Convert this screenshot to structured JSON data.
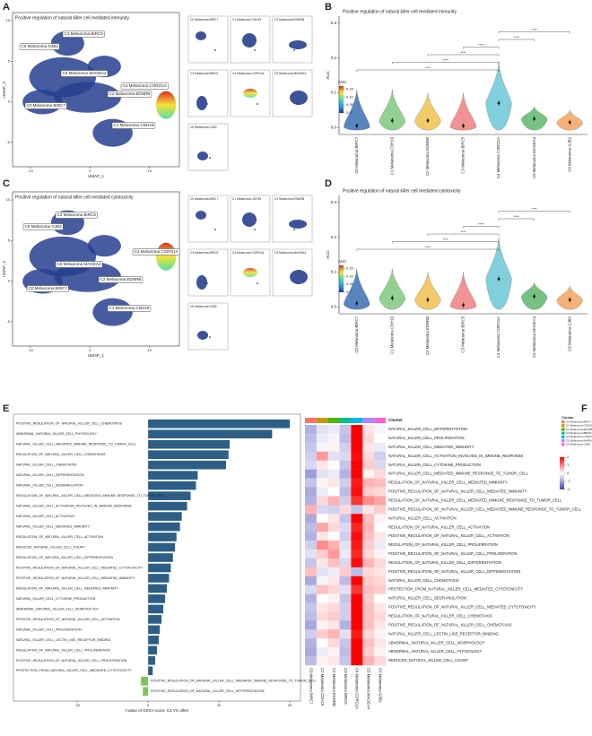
{
  "chart_data": [
    {
      "type": "umap",
      "panel": "A",
      "title": "Positive regulation of natural killer cell mediated immunity",
      "xlabel": "UMAP_1",
      "ylabel": "UMAP_2",
      "xlim": [
        -13,
        15
      ],
      "ylim": [
        -8,
        11
      ],
      "xticks": [
        -10,
        0,
        10
      ],
      "yticks": [
        -5,
        0,
        5,
        10
      ],
      "clusters": [
        "C0 Melanoma BIRC7",
        "C1 Melanoma CDH19",
        "C2 Melanoma EDNRB",
        "C3 Melanoma BIRC5",
        "C4 Melanoma CORO1A",
        "C5 Melanoma MAGEA4",
        "C6 Melanoma GJB2"
      ],
      "colorbar": {
        "title": "AUC",
        "lim": [
          0,
          0.17
        ],
        "ticks": [
          {
            "value": 0,
            "label": "0.00"
          },
          {
            "value": 0.05,
            "label": "0.05"
          },
          {
            "value": 0.1,
            "label": "0.10"
          },
          {
            "value": 0.15,
            "label": "0.15"
          }
        ],
        "colors": [
          "#24368c",
          "#2a9df4",
          "#4fe3a0",
          "#f5e23a",
          "#d7301f"
        ]
      }
    },
    {
      "type": "violin",
      "panel": "B",
      "title": "Positive regulation of natural killer cell mediated immunity",
      "ylabel": "AUC",
      "ylim": [
        -0.02,
        0.32
      ],
      "yticks": [
        {
          "value": 0,
          "label": "0.0"
        },
        {
          "value": 0.1,
          "label": "0.1"
        },
        {
          "value": 0.2,
          "label": "0.2"
        },
        {
          "value": 0.3,
          "label": "0.3"
        }
      ],
      "categories": [
        "C0 Melanoma BIRC7",
        "C1 Melanoma CDH19",
        "C2 Melanoma EDNRB",
        "C3 Melanoma BIRC5",
        "C4 Melanoma CORO1A",
        "C5 Melanoma MAGEA4",
        "C6 Melanoma GJB2"
      ],
      "values": [
        0.005,
        0.02,
        0.02,
        0.005,
        0.07,
        0.025,
        0.015
      ],
      "max_values": [
        0.11,
        0.11,
        0.1,
        0.1,
        0.19,
        0.06,
        0.05
      ],
      "colors": [
        "#3b6fb6",
        "#7fc97f",
        "#f2c14e",
        "#f08080",
        "#6cc8d8",
        "#5fb86f",
        "#f4a460"
      ],
      "comparisons": [
        {
          "groups": [
            "C0 Melanoma BIRC7",
            "C4 Melanoma CORO1A"
          ],
          "label": "****"
        },
        {
          "groups": [
            "C1 Melanoma CDH19",
            "C4 Melanoma CORO1A"
          ],
          "label": "****"
        },
        {
          "groups": [
            "C2 Melanoma EDNRB",
            "C4 Melanoma CORO1A"
          ],
          "label": "****"
        },
        {
          "groups": [
            "C3 Melanoma BIRC5",
            "C4 Melanoma CORO1A"
          ],
          "label": "****"
        },
        {
          "groups": [
            "C4 Melanoma CORO1A",
            "C5 Melanoma MAGEA4"
          ],
          "label": "****"
        },
        {
          "groups": [
            "C4 Melanoma CORO1A",
            "C6 Melanoma GJB2"
          ],
          "label": "****"
        }
      ]
    },
    {
      "type": "umap",
      "panel": "C",
      "title": "Positive regulation of natural killer cell mediated cytotoxicity",
      "xlabel": "UMAP_1",
      "ylabel": "UMAP_2",
      "xlim": [
        -13,
        15
      ],
      "ylim": [
        -8,
        11
      ],
      "xticks": [
        -10,
        0,
        10
      ],
      "yticks": [
        -5,
        0,
        5,
        10
      ],
      "clusters": [
        "C0 Melanoma BIRC7",
        "C1 Melanoma CDH19",
        "C2 Melanoma EDNRB",
        "C3 Melanoma BIRC5",
        "C4 Melanoma CORO1A",
        "C5 Melanoma MAGEA4",
        "C6 Melanoma GJB2"
      ],
      "colorbar": {
        "title": "AUC",
        "lim": [
          0,
          0.17
        ],
        "ticks": [
          {
            "value": 0,
            "label": "0.00"
          },
          {
            "value": 0.05,
            "label": "0.05"
          },
          {
            "value": 0.1,
            "label": "0.10"
          },
          {
            "value": 0.15,
            "label": "0.15"
          }
        ],
        "colors": [
          "#24368c",
          "#2a9df4",
          "#4fe3a0",
          "#f5e23a",
          "#d7301f"
        ]
      }
    },
    {
      "type": "violin",
      "panel": "D",
      "title": "Positive regulation of natural killer cell mediated cytotoxicity",
      "ylabel": "AUC",
      "ylim": [
        -0.02,
        0.32
      ],
      "yticks": [
        {
          "value": 0,
          "label": "0.0"
        },
        {
          "value": 0.1,
          "label": "0.1"
        },
        {
          "value": 0.2,
          "label": "0.2"
        },
        {
          "value": 0.3,
          "label": "0.3"
        }
      ],
      "categories": [
        "C0 Melanoma BIRC7",
        "C1 Melanoma CDH19",
        "C2 Melanoma EDNRB",
        "C3 Melanoma BIRC5",
        "C4 Melanoma CORO1A",
        "C5 Melanoma MAGEA4",
        "C6 Melanoma GJB2"
      ],
      "values": [
        0.01,
        0.025,
        0.02,
        0.005,
        0.08,
        0.03,
        0.02
      ],
      "max_values": [
        0.11,
        0.11,
        0.1,
        0.1,
        0.2,
        0.07,
        0.06
      ],
      "colors": [
        "#3b6fb6",
        "#7fc97f",
        "#f2c14e",
        "#f08080",
        "#6cc8d8",
        "#5fb86f",
        "#f4a460"
      ],
      "comparisons": [
        {
          "groups": [
            "C0 Melanoma BIRC7",
            "C4 Melanoma CORO1A"
          ],
          "label": "****"
        },
        {
          "groups": [
            "C1 Melanoma CDH19",
            "C4 Melanoma CORO1A"
          ],
          "label": "****"
        },
        {
          "groups": [
            "C2 Melanoma EDNRB",
            "C4 Melanoma CORO1A"
          ],
          "label": "****"
        },
        {
          "groups": [
            "C3 Melanoma BIRC5",
            "C4 Melanoma CORO1A"
          ],
          "label": "****"
        },
        {
          "groups": [
            "C4 Melanoma CORO1A",
            "C5 Melanoma MAGEA4"
          ],
          "label": "****"
        },
        {
          "groups": [
            "C4 Melanoma CORO1A",
            "C6 Melanoma GJB2"
          ],
          "label": "****"
        }
      ]
    },
    {
      "type": "hbar",
      "panel": "E",
      "xlabel": "t value of GSVA score, C4 VS other",
      "xlim": [
        -38,
        43
      ],
      "xticks": [
        -20,
        0,
        20,
        40
      ],
      "positive_color": "#2d5f86",
      "negative_color": "#7cc461",
      "categories": [
        "POSITIVE_REGULATION_OF_NATURAL_KILLER_CELL_CHEMOTAXIS",
        "ABNORMAL_NATURAL_KILLER_CELL_PHYSIOLOGY",
        "NATURAL_KILLER_CELL_MEDIATED_IMMUNE_RESPONSE_TO_TUMOR_CELL",
        "REGULATION_OF_NATURAL_KILLER_CELL_CHEMOTAXIS",
        "NATURAL_KILLER_CELL_CHEMOTAXIS",
        "NATURAL_KILLER_CELL_DIFFERENTIATION",
        "NATURAL_KILLER_CELL_DEGRANULATION",
        "REGULATION_OF_NATURAL_KILLER_CELL_MEDIATED_IMMUNE_RESPONSE_TO_TUMOR_CELL",
        "NATURAL_KILLER_CELL_ACTIVATION_INVOLVED_IN_IMMUNE_RESPONSE",
        "NATURAL_KILLER_CELL_ACTIVATION",
        "NATURAL_KILLER_CELL_MEDIATED_IMMUNITY",
        "REGULATION_OF_NATURAL_KILLER_CELL_ACTIVATION",
        "REDUCED_NATURAL_KILLER_CELL_COUNT",
        "REGULATION_OF_NATURAL_KILLER_CELL_DIFFERENTIATION",
        "POSITIVE_REGULATION_OF_NATURAL_KILLER_CELL_MEDIATED_CYTOTOXICITY",
        "POSITIVE_REGULATION_OF_NATURAL_KILLER_CELL_MEDIATED_IMMUNITY",
        "REGULATION_OF_NATURAL_KILLER_CELL_MEDIATED_IMMUNITY",
        "NATURAL_KILLER_CELL_CYTOKINE_PRODUCTION",
        "ABNORMAL_NATURAL_KILLER_CELL_MORPHOLOGY",
        "POSITIVE_REGULATION_OF_NATURAL_KILLER_CELL_ACTIVATION",
        "NATURAL_KILLER_CELL_PROLIFERATION",
        "NATURAL_KILLER_CELL_LECTIN_LIKE_RECEPTOR_BINDING",
        "REGULATION_OF_NATURAL_KILLER_CELL_PROLIFERATION",
        "POSITIVE_REGULATION_OF_NATURAL_KILLER_CELL_PROLIFERATION",
        "PROTECTION_FROM_NATURAL_KILLER_CELL_MEDIATED_CYTOTOXICITY",
        "POSITIVE_REGULATION_OF_NATURAL_KILLER_CELL_MEDIATED_IMMUNE_RESPONSE_TO_TUMOR_CELL",
        "POSITIVE_REGULATION_OF_NATURAL_KILLER_CELL_DIFFERENTIATION"
      ],
      "values": [
        40,
        35,
        23,
        22.7,
        22,
        14,
        13.5,
        12,
        11,
        9.5,
        9,
        8,
        7.6,
        7,
        6.4,
        5.9,
        5.3,
        4.8,
        4.3,
        3.8,
        3.3,
        3,
        2.5,
        2,
        1.3,
        -2,
        -1.5
      ]
    },
    {
      "type": "heatmap",
      "panel": "F",
      "annotation_title": "Cluster",
      "legend_title": "Cluster",
      "zlim": [
        -2,
        2
      ],
      "zticks": [
        -2,
        -1,
        0,
        1,
        2
      ],
      "scale_colors": [
        "#3f3fb6",
        "#ffffff",
        "#ff0000"
      ],
      "columns": [
        "C0 Melanoma BIRC7",
        "C1 Melanoma CDH19",
        "C2 Melanoma EDNRB",
        "C3 Melanoma BIRC5",
        "C4 Melanoma CORO1A",
        "C5 Melanoma MAGEA4",
        "C6 Melanoma GJB2"
      ],
      "cluster_colors": [
        "#F8766D",
        "#C49A00",
        "#53B400",
        "#00C094",
        "#00B6EB",
        "#A58AFF",
        "#FB61D7"
      ],
      "rows": [
        "NATURAL_KILLER_CELL_DIFFERENTIATION",
        "NATURAL_KILLER_CELL_PROLIFERATION",
        "NATURAL_KILLER_CELL_MEDIATED_IMMUNITY",
        "NATURAL_KILLER_CELL_ACTIVATION_INVOLVED_IN_IMMUNE_RESPONSE",
        "NATURAL_KILLER_CELL_CYTOKINE_PRODUCTION",
        "NATURAL_KILLER_CELL_MEDIATED_IMMUNE_RESPONSE_TO_TUMOR_CELL",
        "REGULATION_OF_NATURAL_KILLER_CELL_MEDIATED_IMMUNITY",
        "POSITIVE_REGULATION_OF_NATURAL_KILLER_CELL_MEDIATED_IMMUNITY",
        "REGULATION_OF_NATURAL_KILLER_CELL_MEDIATED_IMMUNE_RESPONSE_TO_TUMOR_CELL",
        "POSITIVE_REGULATION_OF_NATURAL_KILLER_CELL_MEDIATED_IMMUNE_RESPONSE_TO_TUMOR_CELL",
        "NATURAL_KILLER_CELL_ACTIVATION",
        "REGULATION_OF_NATURAL_KILLER_CELL_ACTIVATION",
        "POSITIVE_REGULATION_OF_NATURAL_KILLER_CELL_ACTIVATION",
        "REGULATION_OF_NATURAL_KILLER_CELL_PROLIFERATION",
        "POSITIVE_REGULATION_OF_NATURAL_KILLER_CELL_PROLIFERATION",
        "REGULATION_OF_NATURAL_KILLER_CELL_DIFFERENTIATION",
        "POSITIVE_REGULATION_OF_NATURAL_KILLER_CELL_DIFFERENTIATION",
        "NATURAL_KILLER_CELL_CHEMOTAXIS",
        "PROTECTION_FROM_NATURAL_KILLER_CELL_MEDIATED_CYTOTOXICITY",
        "NATURAL_KILLER_CELL_DEGRANULATION",
        "POSITIVE_REGULATION_OF_NATURAL_KILLER_CELL_MEDIATED_CYTOTOXICITY",
        "REGULATION_OF_NATURAL_KILLER_CELL_CHEMOTAXIS",
        "POSITIVE_REGULATION_OF_NATURAL_KILLER_CELL_CHEMOTAXIS",
        "NATURAL_KILLER_CELL_LECTIN_LIKE_RECEPTOR_BINDING",
        "ABNORMAL_NATURAL_KILLER_CELL_MORPHOLOGY",
        "ABNORMAL_NATURAL_KILLER_CELL_PHYSIOLOGY",
        "REDUCED_NATURAL_KILLER_CELL_COUNT"
      ],
      "values": [
        [
          -0.8,
          -0.3,
          -0.2,
          -0.6,
          2.3,
          0.2,
          -0.1
        ],
        [
          -0.7,
          -0.2,
          -0.1,
          -0.7,
          2.3,
          0.3,
          0
        ],
        [
          -0.6,
          -0.1,
          0.1,
          -0.5,
          2.2,
          0.2,
          -0.2
        ],
        [
          -0.5,
          0.8,
          -0.3,
          -0.4,
          1.9,
          0.3,
          -0.5
        ],
        [
          -0.4,
          0.2,
          0,
          -0.6,
          2.1,
          0.4,
          -0.4
        ],
        [
          -1,
          -0.3,
          -0.2,
          -0.8,
          2,
          0.1,
          0.3
        ],
        [
          -0.6,
          0.1,
          0.2,
          -0.5,
          1.8,
          0.6,
          0.5
        ],
        [
          -0.9,
          -0.2,
          0,
          -0.7,
          1.9,
          0.4,
          0.3
        ],
        [
          -0.8,
          0.3,
          0.6,
          -0.5,
          1.6,
          0.9,
          0.7
        ],
        [
          0.6,
          -0.4,
          -0.5,
          0.3,
          -0.6,
          0.2,
          0.4
        ],
        [
          -0.9,
          0,
          0.2,
          -0.6,
          2.2,
          0.5,
          0.1
        ],
        [
          -0.7,
          0.7,
          0.3,
          -0.4,
          1.7,
          0.6,
          0
        ],
        [
          -0.8,
          0.2,
          0,
          -0.5,
          1.9,
          0.5,
          0.2
        ],
        [
          -0.5,
          0.9,
          0.6,
          -0.3,
          1.8,
          0.4,
          -0.2
        ],
        [
          -0.3,
          0.4,
          0.8,
          -0.2,
          1.7,
          0.3,
          0.1
        ],
        [
          -0.6,
          0.2,
          0.5,
          -0.4,
          1.9,
          0.6,
          0.3
        ],
        [
          0.5,
          -0.3,
          -0.2,
          0.4,
          -0.7,
          0.3,
          0.2
        ],
        [
          -0.9,
          -0.1,
          0.2,
          -0.7,
          2.2,
          0.4,
          0.3
        ],
        [
          -0.4,
          0.5,
          0.3,
          -0.3,
          1.6,
          0.5,
          0.4
        ],
        [
          -0.8,
          0,
          0.1,
          -0.6,
          2.1,
          0.4,
          0
        ],
        [
          -0.6,
          0.2,
          0.3,
          -0.5,
          2,
          0.5,
          0.2
        ],
        [
          -0.7,
          0.3,
          0.4,
          -0.5,
          2,
          0.5,
          0.3
        ],
        [
          -0.9,
          0.1,
          0.2,
          -0.8,
          2.3,
          0.5,
          0.2
        ],
        [
          -0.5,
          0.4,
          0.6,
          -0.3,
          1.8,
          0.3,
          0.1
        ],
        [
          -0.8,
          0,
          0.3,
          -0.6,
          2.2,
          0.5,
          0.2
        ],
        [
          -0.9,
          -0.2,
          0.1,
          -0.7,
          2.3,
          0.4,
          0.1
        ],
        [
          -0.7,
          0.1,
          0.2,
          -0.6,
          2.1,
          0.6,
          0.3
        ]
      ]
    }
  ]
}
